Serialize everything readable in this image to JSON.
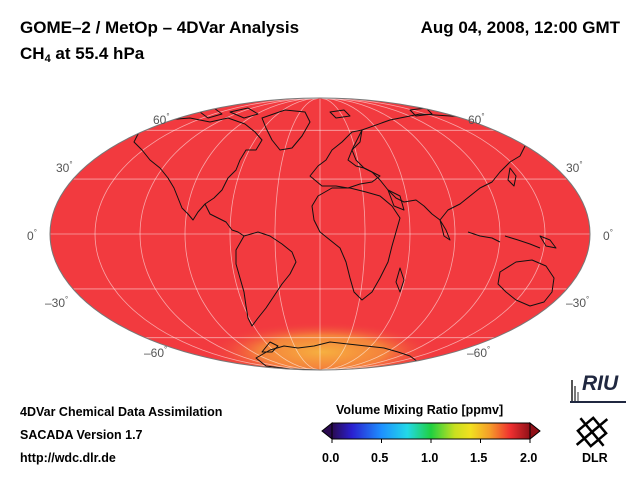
{
  "header": {
    "title_left": "GOME–2 / MetOp – 4DVar Analysis",
    "species": "CH",
    "species_sub": "4",
    "level": " at 55.4 hPa",
    "datetime": "Aug 04, 2008, 12:00 GMT"
  },
  "map": {
    "projection": "Mollweide",
    "lat_labels": {
      "n60": "60",
      "n30": "30",
      "eq": "0",
      "s30": "–30",
      "s60": "–60"
    },
    "degree_symbol": "°",
    "fill_value_ppmv": 1.75,
    "colors": {
      "field": "#f23a3f",
      "south_pole_anomaly": "#f5a03a",
      "coast": "#111111",
      "grid": "#ffffff"
    }
  },
  "colorbar": {
    "title": "Volume Mixing Ratio [ppmv]",
    "ticks": [
      "0.0",
      "0.5",
      "1.0",
      "1.5",
      "2.0"
    ],
    "range": [
      0.0,
      2.0
    ]
  },
  "footer": {
    "line1": "4DVar Chemical Data Assimilation",
    "line2": "SACADA Version 1.7",
    "line3": "http://wdc.dlr.de"
  },
  "logos": {
    "riu": "RIU",
    "dlr": "DLR"
  }
}
